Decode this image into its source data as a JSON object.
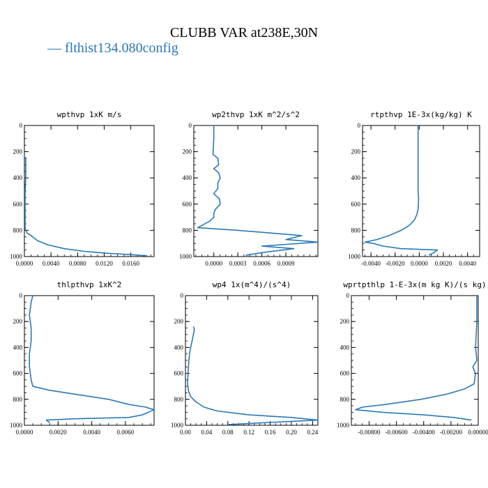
{
  "title": "CLUBB VAR at238E,30N",
  "legend": {
    "marker": "—",
    "label": "flthist134.080config"
  },
  "colors": {
    "series": "#2a78b5",
    "axis": "#000000"
  },
  "chart_data": [
    {
      "type": "line",
      "title": "wpthvp  1xK m/s",
      "xlim": [
        0,
        0.0195
      ],
      "ylim": [
        1000,
        0
      ],
      "yticks": [
        "0",
        "200",
        "400",
        "600",
        "800",
        "1000"
      ],
      "xticks": [
        {
          "v": 0,
          "label": "0.0000"
        },
        {
          "v": 0.004,
          "label": "0.0040"
        },
        {
          "v": 0.008,
          "label": "0.0080"
        },
        {
          "v": 0.012,
          "label": "0.0120"
        },
        {
          "v": 0.016,
          "label": "0.0160"
        }
      ],
      "series": [
        {
          "x": [
            0.0002,
            0.0002,
            0.0002,
            0.0001,
            0.0001,
            0.0001,
            0.0001,
            0.0002,
            0.0004,
            0.001,
            0.0015,
            0.002,
            0.0035,
            0.006,
            0.009,
            0.0125,
            0.016,
            0.0185
          ],
          "y": [
            240,
            300,
            400,
            500,
            600,
            700,
            780,
            800,
            820,
            840,
            860,
            880,
            910,
            940,
            960,
            975,
            985,
            995
          ]
        }
      ]
    },
    {
      "type": "line",
      "title": "wp2thvp  1xK m^2/s^2",
      "xlim": [
        -0.00025,
        0.0013
      ],
      "ylim": [
        1000,
        0
      ],
      "yticks": [
        "0",
        "200",
        "400",
        "600",
        "800",
        "1000"
      ],
      "xticks": [
        {
          "v": 0,
          "label": "0.0000"
        },
        {
          "v": 0.0003,
          "label": "0.0003"
        },
        {
          "v": 0.0006,
          "label": "0.0006"
        },
        {
          "v": 0.0009,
          "label": "0.0009"
        }
      ],
      "series": [
        {
          "x": [
            0.0,
            0.0,
            -1e-05,
            -1e-05,
            5e-05,
            6e-05,
            0.0,
            6e-05,
            8e-05,
            5e-05,
            5e-05,
            0.0,
            7e-05,
            8e-05,
            2e-05,
            0.0,
            0.0,
            -5e-05,
            -0.0002,
            0.0003,
            0.0011,
            0.0009,
            0.0013,
            0.0006,
            0.001,
            0.0006,
            0.0004
          ],
          "y": [
            0,
            100,
            200,
            220,
            250,
            300,
            330,
            360,
            400,
            440,
            480,
            520,
            560,
            600,
            640,
            670,
            700,
            730,
            780,
            800,
            840,
            870,
            890,
            920,
            940,
            970,
            990
          ]
        }
      ]
    },
    {
      "type": "line",
      "title": "rtpthvp  1E-3x(kg/kg) K",
      "xlim": [
        -0.0047,
        0.005
      ],
      "ylim": [
        1000,
        0
      ],
      "yticks": [
        "0",
        "200",
        "400",
        "600",
        "800",
        "1000"
      ],
      "xticks": [
        {
          "v": -0.004,
          "label": "-0.0040"
        },
        {
          "v": -0.002,
          "label": "-0.0020"
        },
        {
          "v": 0,
          "label": "0.0000"
        },
        {
          "v": 0.002,
          "label": "0.0020"
        },
        {
          "v": 0.004,
          "label": "0.0040"
        }
      ],
      "series": [
        {
          "x": [
            -0.0001,
            -0.0001,
            -0.0001,
            -0.0001,
            -5e-05,
            -0.0001,
            -0.0002,
            -0.0004,
            -0.0008,
            -0.0015,
            -0.0025,
            -0.0035,
            -0.0045,
            -0.0038,
            -0.003,
            -0.0015,
            0.0015,
            0.0012,
            0.0008
          ],
          "y": [
            0,
            200,
            400,
            500,
            560,
            640,
            680,
            720,
            760,
            800,
            840,
            870,
            890,
            900,
            920,
            940,
            950,
            970,
            990
          ]
        }
      ]
    },
    {
      "type": "line",
      "title": "thlpthvp  1xK^2",
      "xlim": [
        0,
        0.0077
      ],
      "ylim": [
        1000,
        0
      ],
      "yticks": [
        "0",
        "200",
        "400",
        "600",
        "800",
        "1000"
      ],
      "xticks": [
        {
          "v": 0,
          "label": "0.0000"
        },
        {
          "v": 0.002,
          "label": "0.0020"
        },
        {
          "v": 0.004,
          "label": "0.0040"
        },
        {
          "v": 0.006,
          "label": "0.0060"
        }
      ],
      "series": [
        {
          "x": [
            0.0005,
            0.0004,
            0.0003,
            0.0004,
            0.0004,
            0.0003,
            0.0003,
            0.0004,
            0.0005,
            0.0015,
            0.003,
            0.005,
            0.0062,
            0.0072,
            0.0077,
            0.007,
            0.0062,
            0.003,
            0.0013,
            0.0015
          ],
          "y": [
            0,
            50,
            150,
            250,
            350,
            450,
            550,
            650,
            700,
            730,
            760,
            800,
            840,
            860,
            880,
            920,
            940,
            950,
            960,
            980
          ]
        }
      ]
    },
    {
      "type": "line",
      "title": "wp4  1x(m^4)/(s^4)",
      "xlim": [
        0,
        0.25
      ],
      "ylim": [
        1000,
        0
      ],
      "yticks": [
        "0",
        "200",
        "400",
        "600",
        "800",
        "1000"
      ],
      "xticks": [
        {
          "v": 0,
          "label": "0.00"
        },
        {
          "v": 0.04,
          "label": "0.04"
        },
        {
          "v": 0.08,
          "label": "0.08"
        },
        {
          "v": 0.12,
          "label": "0.12"
        },
        {
          "v": 0.16,
          "label": "0.16"
        },
        {
          "v": 0.2,
          "label": "0.20"
        },
        {
          "v": 0.24,
          "label": "0.24"
        }
      ],
      "series": [
        {
          "x": [
            0.015,
            0.017,
            0.015,
            0.012,
            0.008,
            0.006,
            0.005,
            0.004,
            0.006,
            0.01,
            0.02,
            0.035,
            0.06,
            0.12,
            0.2,
            0.25,
            0.2,
            0.15,
            0.08
          ],
          "y": [
            240,
            260,
            300,
            360,
            440,
            520,
            600,
            680,
            740,
            780,
            820,
            860,
            890,
            920,
            940,
            960,
            970,
            980,
            995
          ]
        }
      ]
    },
    {
      "type": "line",
      "title": "wprtpthlp  1-E-3x(m kg K)/(s kg)",
      "xlim": [
        -0.0093,
        0.0
      ],
      "ylim": [
        1000,
        0
      ],
      "yticks": [
        "0",
        "200",
        "400",
        "600",
        "800",
        "1000"
      ],
      "xticks": [
        {
          "v": -0.008,
          "label": "-0.00800"
        },
        {
          "v": -0.006,
          "label": "-0.00600"
        },
        {
          "v": -0.004,
          "label": "-0.00400"
        },
        {
          "v": -0.002,
          "label": "-0.00200"
        },
        {
          "v": 0,
          "label": "0.00000"
        }
      ],
      "series": [
        {
          "x": [
            -0.0001,
            -0.0001,
            -0.0002,
            -0.0001,
            -0.0004,
            -0.0002,
            -0.0003,
            -0.001,
            -0.0023,
            -0.0042,
            -0.0068,
            -0.0085,
            -0.009,
            -0.007,
            -0.004,
            -0.0018,
            -0.0005
          ],
          "y": [
            0,
            200,
            400,
            500,
            550,
            600,
            680,
            720,
            760,
            800,
            840,
            860,
            880,
            900,
            920,
            940,
            960
          ]
        }
      ]
    }
  ]
}
